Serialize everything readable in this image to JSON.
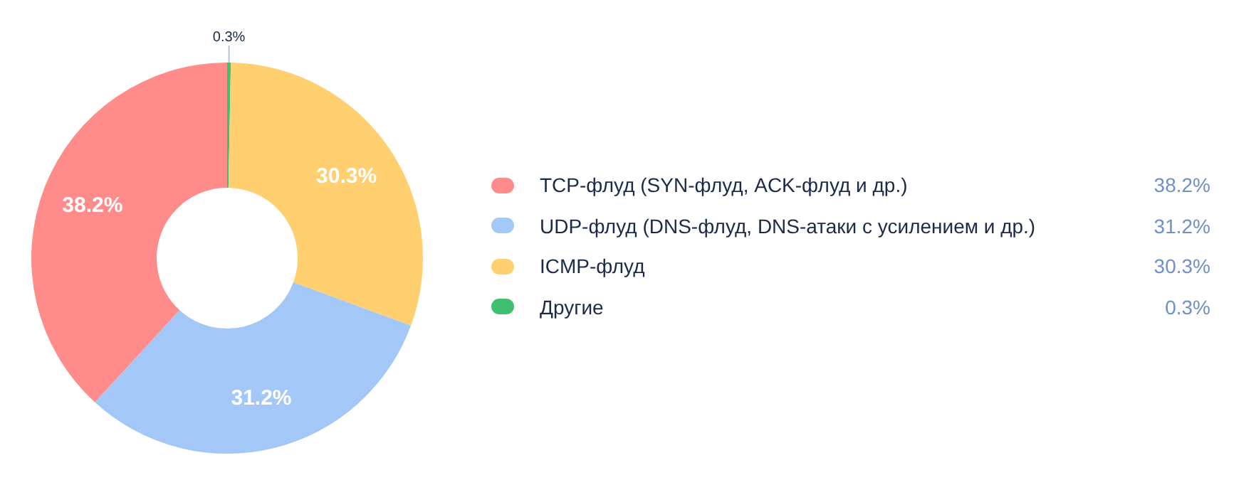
{
  "chart_data": {
    "type": "donut",
    "categories": [
      "TCP-флуд (SYN-флуд, ACK-флуд и др.)",
      "UDP-флуд (DNS-флуд, DNS-атаки с усилением и др.)",
      "ICMP-флуд",
      "Другие"
    ],
    "values": [
      38.2,
      31.2,
      30.3,
      0.3
    ],
    "value_labels": [
      "38.2%",
      "31.2%",
      "30.3%",
      "0.3%"
    ],
    "colors": [
      "#ff8b8b",
      "#a3c8f7",
      "#ffcf70",
      "#3fbf70"
    ],
    "legend": "right"
  }
}
